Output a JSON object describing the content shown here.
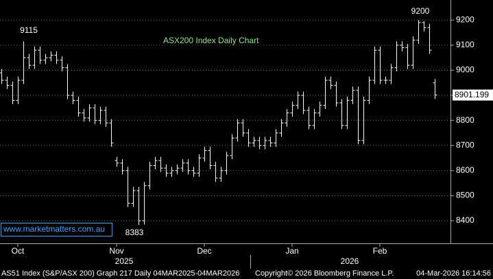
{
  "chart_data": {
    "type": "ohlc",
    "title": "ASX200 Index Daily Chart",
    "categories": [
      null,
      null,
      null,
      "Oct",
      null,
      null,
      null,
      null,
      null,
      null,
      null,
      null,
      null,
      null,
      null,
      null,
      null,
      null,
      null,
      null,
      null,
      "Nov",
      null,
      null,
      null,
      null,
      null,
      null,
      null,
      null,
      null,
      null,
      null,
      null,
      null,
      null,
      null,
      "Dec",
      null,
      null,
      null,
      null,
      null,
      null,
      null,
      null,
      null,
      null,
      null,
      null,
      null,
      null,
      null,
      "Jan",
      null,
      null,
      null,
      null,
      null,
      null,
      null,
      null,
      null,
      null,
      null,
      null,
      null,
      null,
      null,
      "Feb",
      null,
      null,
      null,
      null,
      null,
      null,
      null,
      null,
      null,
      null
    ],
    "year_labels": [
      "2025",
      "2026"
    ],
    "open": [
      8990,
      8960,
      8940,
      8880,
      8960,
      9050,
      9020,
      9080,
      9040,
      9050,
      9060,
      9040,
      9010,
      8900,
      8880,
      8830,
      8810,
      8850,
      8800,
      8840,
      8790,
      8640,
      8630,
      8600,
      8470,
      8520,
      8400,
      8540,
      8620,
      8640,
      8610,
      8590,
      8600,
      8610,
      8630,
      8600,
      8590,
      8650,
      8680,
      8620,
      8570,
      8600,
      8660,
      8730,
      8790,
      8750,
      8710,
      8720,
      8700,
      8720,
      8710,
      8750,
      8790,
      8830,
      8860,
      8900,
      8840,
      8780,
      8830,
      8860,
      8960,
      8940,
      8870,
      8780,
      8880,
      8920,
      8720,
      8880,
      8960,
      9080,
      8960,
      8960,
      9010,
      9100,
      9090,
      9020,
      9120,
      9190,
      9170,
      8950
    ],
    "high": [
      9005,
      8975,
      8955,
      8975,
      9115,
      9065,
      9095,
      9095,
      9065,
      9075,
      9075,
      9055,
      9025,
      8915,
      8895,
      8845,
      8865,
      8865,
      8855,
      8855,
      8805,
      8655,
      8645,
      8615,
      8535,
      8535,
      8555,
      8635,
      8655,
      8655,
      8625,
      8615,
      8625,
      8645,
      8645,
      8615,
      8665,
      8695,
      8695,
      8635,
      8615,
      8675,
      8745,
      8805,
      8805,
      8765,
      8735,
      8735,
      8735,
      8735,
      8765,
      8805,
      8845,
      8875,
      8915,
      8915,
      8855,
      8845,
      8875,
      8975,
      8975,
      8955,
      8885,
      8895,
      8935,
      8935,
      8895,
      8975,
      9095,
      9095,
      8975,
      9025,
      9115,
      9115,
      9105,
      9135,
      9200,
      9195,
      9185,
      8965
    ],
    "low": [
      8945,
      8925,
      8865,
      8865,
      8945,
      9005,
      9005,
      9025,
      9025,
      9035,
      9025,
      8995,
      8885,
      8865,
      8815,
      8795,
      8795,
      8785,
      8785,
      8775,
      8695,
      8615,
      8585,
      8455,
      8455,
      8383,
      8385,
      8525,
      8605,
      8595,
      8575,
      8575,
      8585,
      8595,
      8585,
      8575,
      8575,
      8635,
      8605,
      8555,
      8555,
      8585,
      8645,
      8715,
      8735,
      8695,
      8695,
      8685,
      8685,
      8695,
      8695,
      8735,
      8775,
      8815,
      8845,
      8825,
      8765,
      8765,
      8815,
      8845,
      8925,
      8855,
      8765,
      8765,
      8865,
      8705,
      8705,
      8865,
      8945,
      8945,
      8945,
      8945,
      8995,
      9075,
      9005,
      9005,
      9105,
      9155,
      9065,
      8886
    ],
    "close": [
      8960,
      8940,
      8880,
      8960,
      9050,
      9020,
      9080,
      9040,
      9050,
      9060,
      9040,
      9010,
      8900,
      8880,
      8830,
      8810,
      8850,
      8800,
      8840,
      8790,
      8710,
      8630,
      8600,
      8470,
      8520,
      8400,
      8540,
      8620,
      8640,
      8610,
      8590,
      8600,
      8610,
      8630,
      8600,
      8590,
      8650,
      8680,
      8620,
      8570,
      8600,
      8660,
      8730,
      8790,
      8750,
      8710,
      8720,
      8700,
      8720,
      8710,
      8750,
      8790,
      8830,
      8860,
      8900,
      8840,
      8780,
      8830,
      8860,
      8960,
      8940,
      8870,
      8780,
      8880,
      8920,
      8720,
      8880,
      8960,
      9080,
      8960,
      8960,
      9010,
      9100,
      9090,
      9020,
      9120,
      9190,
      9170,
      9080,
      8901.199
    ],
    "color": "#ffffff",
    "ylim": [
      8310,
      9280
    ],
    "yticks": [
      8400,
      8500,
      8600,
      8700,
      8800,
      8900,
      9000,
      9100,
      9200
    ],
    "grid": true,
    "last_price": 8901.199,
    "annotations": [
      "9115",
      "8383",
      "9200"
    ],
    "watermark": "www.marketmatters.com.au",
    "footer": [
      "AS51 Index (S&P/ASX 200) Graph 217 Daily 04MAR2025-04MAR2026",
      "Copyright© 2026 Bloomberg Finance L.P.",
      "04-Mar-2026 16:14:56"
    ]
  }
}
